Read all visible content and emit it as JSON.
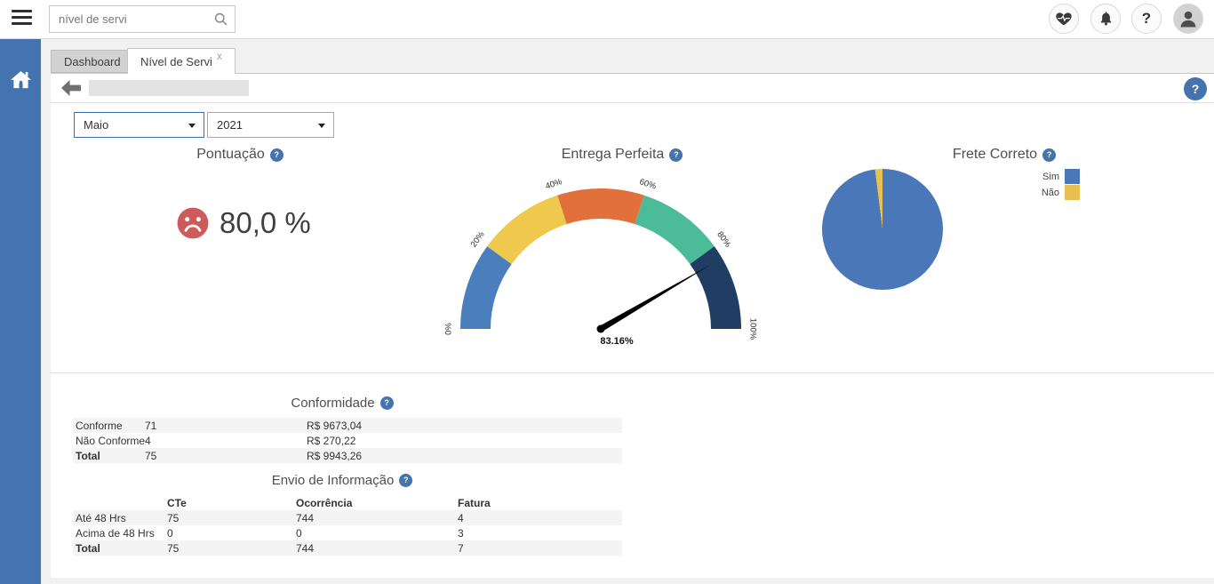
{
  "ui": {
    "help_glyph": "?"
  },
  "accent_color": "#4573af",
  "topbar": {
    "search_value": "nível de servi",
    "icon_buttons": [
      "health-pulse",
      "notifications-bell",
      "help",
      "user-profile"
    ]
  },
  "sidebar": {
    "items": [
      "home"
    ]
  },
  "tabs": [
    {
      "label": "Dashboard",
      "active": false
    },
    {
      "label": "Nível de Servi",
      "active": true,
      "close_label": "X"
    }
  ],
  "filters": {
    "month": "Maio",
    "year": "2021"
  },
  "chart_data": [
    {
      "type": "score",
      "title": "Pontuação",
      "value": 80.0,
      "value_label": "80,0 %",
      "mood": "sad",
      "mood_color": "#cd5b5b"
    },
    {
      "type": "gauge",
      "title": "Entrega Perfeita",
      "value": 83.16,
      "value_label": "83.16%",
      "min": 0,
      "max": 100,
      "tick_labels": [
        "0%",
        "20%",
        "40%",
        "60%",
        "80%",
        "100%"
      ],
      "segments": [
        {
          "from": 0,
          "to": 20,
          "color": "#4a7ebc"
        },
        {
          "from": 20,
          "to": 40,
          "color": "#eec94d"
        },
        {
          "from": 40,
          "to": 60,
          "color": "#e2703b"
        },
        {
          "from": 60,
          "to": 80,
          "color": "#4cbc98"
        },
        {
          "from": 80,
          "to": 100,
          "color": "#203e63"
        }
      ]
    },
    {
      "type": "pie",
      "title": "Frete Correto",
      "legend_position": "top-right",
      "series": [
        {
          "name": "Sim",
          "value": 98,
          "color": "#4a77b8"
        },
        {
          "name": "Não",
          "value": 2,
          "color": "#e9c152"
        }
      ]
    }
  ],
  "tables": {
    "conformidade": {
      "title": "Conformidade",
      "rows": [
        [
          "Conforme",
          "71",
          "R$ 9673,04"
        ],
        [
          "Não Conforme",
          "4",
          "R$ 270,22"
        ],
        [
          "Total",
          "75",
          "R$ 9943,26"
        ]
      ]
    },
    "envio": {
      "title": "Envio de Informação",
      "headers": [
        "",
        "CTe",
        "Ocorrência",
        "Fatura"
      ],
      "rows": [
        [
          "Até 48 Hrs",
          "75",
          "744",
          "4"
        ],
        [
          "Acima de 48 Hrs",
          "0",
          "0",
          "3"
        ],
        [
          "Total",
          "75",
          "744",
          "7"
        ]
      ]
    }
  }
}
